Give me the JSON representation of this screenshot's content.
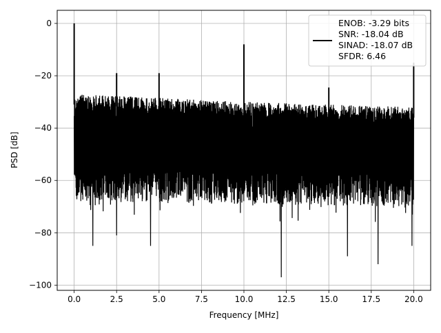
{
  "chart_data": {
    "type": "line",
    "title": "",
    "xlabel": "Frequency [MHz]",
    "ylabel": "PSD [dB]",
    "xlim": [
      -1.0,
      21.0
    ],
    "ylim": [
      -102,
      5
    ],
    "xticks": [
      0.0,
      2.5,
      5.0,
      7.5,
      10.0,
      12.5,
      15.0,
      17.5,
      20.0
    ],
    "xtick_labels": [
      "0.0",
      "2.5",
      "5.0",
      "7.5",
      "10.0",
      "12.5",
      "15.0",
      "17.5",
      "20.0"
    ],
    "yticks": [
      0,
      -20,
      -40,
      -60,
      -80,
      -100
    ],
    "ytick_labels": [
      "0",
      "−20",
      "−40",
      "−60",
      "−80",
      "−100"
    ],
    "grid": true,
    "legend_position": "top-right",
    "series_color": "#000000",
    "legend_lines": [
      "ENOB: -3.29 bits",
      "SNR: -18.04 dB",
      "SINAD: -18.07 dB",
      "SFDR: 6.46"
    ],
    "noise_floor": {
      "x_range": [
        0.0,
        20.0
      ],
      "upper_envelope": [
        [
          0.0,
          -27
        ],
        [
          5.0,
          -28.5
        ],
        [
          10.0,
          -30
        ],
        [
          15.0,
          -31
        ],
        [
          20.0,
          -32
        ]
      ],
      "lower_envelope": [
        [
          0.0,
          -68
        ],
        [
          20.0,
          -70
        ]
      ],
      "minimum_dips": [
        [
          1.1,
          -85
        ],
        [
          2.5,
          -81
        ],
        [
          4.5,
          -85
        ],
        [
          12.2,
          -97
        ],
        [
          16.1,
          -89
        ],
        [
          17.9,
          -92
        ],
        [
          19.9,
          -85
        ]
      ]
    },
    "peaks": [
      {
        "x": 0.0,
        "y": 0
      },
      {
        "x": 2.5,
        "y": -19
      },
      {
        "x": 5.0,
        "y": -19
      },
      {
        "x": 10.0,
        "y": -8
      },
      {
        "x": 15.0,
        "y": -24.5
      },
      {
        "x": 20.0,
        "y": -15
      }
    ]
  }
}
